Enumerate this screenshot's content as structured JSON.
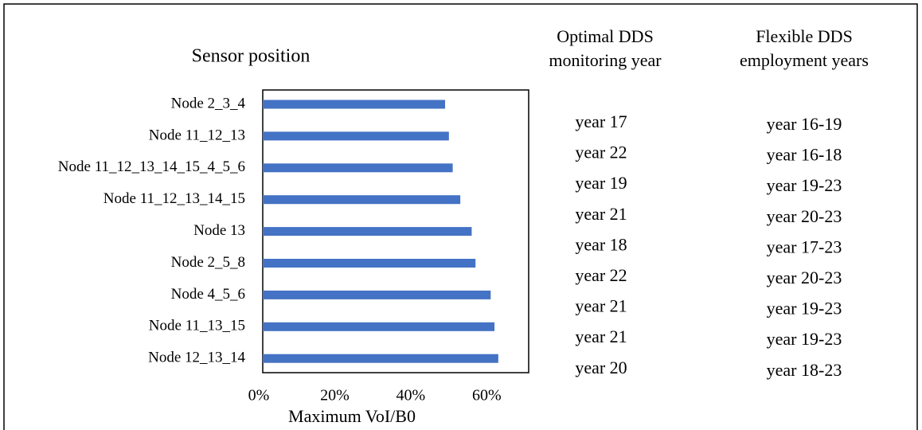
{
  "chart_data": {
    "type": "bar",
    "orientation": "horizontal",
    "title": "Sensor position",
    "x_label": "Maximum VoI/B0",
    "categories": [
      "Node 2_3_4",
      "Node 11_12_13",
      "Node 11_12_13_14_15_4_5_6",
      "Node 11_12_13_14_15",
      "Node 13",
      "Node 2_5_8",
      "Node 4_5_6",
      "Node 11_13_15",
      "Node 12_13_14"
    ],
    "values": [
      48,
      49,
      50,
      52,
      55,
      56,
      60,
      61,
      62
    ],
    "color": "#4472c4",
    "xlim": [
      0,
      70
    ],
    "xticks": [
      {
        "value": 0,
        "label": "0%"
      },
      {
        "value": 20,
        "label": "20%"
      },
      {
        "value": 40,
        "label": "40%"
      },
      {
        "value": 60,
        "label": "60%"
      }
    ]
  },
  "table": {
    "columns": [
      {
        "header": [
          "Optimal DDS",
          "monitoring year"
        ],
        "rows": [
          "year 17",
          "year 22",
          "year 19",
          "year 21",
          "year 18",
          "year 22",
          "year 21",
          "year 21",
          "year 20"
        ]
      },
      {
        "header": [
          "Flexible DDS",
          "employment years"
        ],
        "rows": [
          "year 16-19",
          "year 16-18",
          "year 19-23",
          "year 20-23",
          "year 17-23",
          "year 20-23",
          "year 19-23",
          "year 19-23",
          "year 18-23"
        ]
      }
    ]
  }
}
